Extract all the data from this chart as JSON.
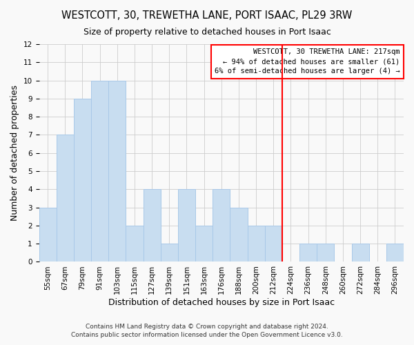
{
  "title": "WESTCOTT, 30, TREWETHA LANE, PORT ISAAC, PL29 3RW",
  "subtitle": "Size of property relative to detached houses in Port Isaac",
  "xlabel": "Distribution of detached houses by size in Port Isaac",
  "ylabel": "Number of detached properties",
  "bar_color": "#c8ddf0",
  "bar_edge_color": "#a8c8e8",
  "bin_labels": [
    "55sqm",
    "67sqm",
    "79sqm",
    "91sqm",
    "103sqm",
    "115sqm",
    "127sqm",
    "139sqm",
    "151sqm",
    "163sqm",
    "176sqm",
    "188sqm",
    "200sqm",
    "212sqm",
    "224sqm",
    "236sqm",
    "248sqm",
    "260sqm",
    "272sqm",
    "284sqm",
    "296sqm"
  ],
  "bin_counts": [
    3,
    7,
    9,
    10,
    10,
    2,
    4,
    1,
    4,
    2,
    4,
    3,
    2,
    2,
    0,
    1,
    1,
    0,
    1,
    0,
    1
  ],
  "red_line_bin_index": 13.5,
  "ylim": [
    0,
    12
  ],
  "yticks": [
    0,
    1,
    2,
    3,
    4,
    5,
    6,
    7,
    8,
    9,
    10,
    11,
    12
  ],
  "legend_line0": "WESTCOTT, 30 TREWETHA LANE: 217sqm",
  "legend_line1": "← 94% of detached houses are smaller (61)",
  "legend_line2": "6% of semi-detached houses are larger (4) →",
  "footer1": "Contains HM Land Registry data © Crown copyright and database right 2024.",
  "footer2": "Contains public sector information licensed under the Open Government Licence v3.0.",
  "grid_color": "#cccccc",
  "background_color": "#f9f9f9",
  "title_fontsize": 10.5,
  "subtitle_fontsize": 9,
  "axis_label_fontsize": 9,
  "tick_fontsize": 7.5,
  "legend_fontsize": 7.5,
  "footer_fontsize": 6.5
}
